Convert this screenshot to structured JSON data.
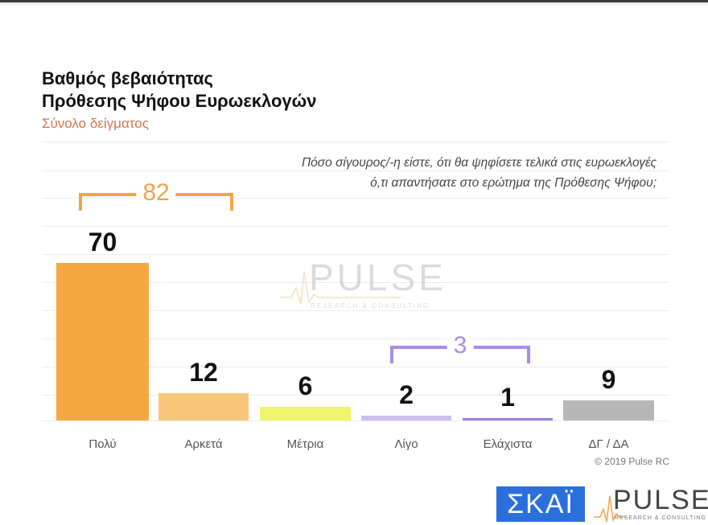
{
  "header": {
    "title_line1": "Βαθμός βεβαιότητας",
    "title_line2": "Πρόθεσης Ψήφου Ευρωεκλογών",
    "subtitle": "Σύνολο δείγματος"
  },
  "question": {
    "line1": "Πόσο σίγουρος/-η είστε, ότι θα ψηφίσετε τελικά στις ευρωεκλογές",
    "line2": "ό,τι απαντήσατε στο ερώτημα της Πρόθεσης Ψήφου;"
  },
  "brackets": {
    "high": {
      "label": "82",
      "color": "#f0a54a"
    },
    "low": {
      "label": "3",
      "color": "#a98be8"
    }
  },
  "watermark": {
    "text": "PULSE",
    "subtext": "RESEARCH & CONSULTING"
  },
  "footer": {
    "copyright": "© 2019 Pulse RC",
    "skai_logo": "ΣΚΑΪ",
    "pulse_logo": "PULSE",
    "pulse_sub": "RESEARCH & CONSULTING"
  },
  "chart_data": {
    "type": "bar",
    "title": "Βαθμός βεβαιότητας Πρόθεσης Ψήφου Ευρωεκλογών",
    "subtitle": "Σύνολο δείγματος",
    "categories": [
      "Πολύ",
      "Αρκετά",
      "Μέτρια",
      "Λίγο",
      "Ελάχιστα",
      "ΔΓ / ΔΑ"
    ],
    "values": [
      70,
      12,
      6,
      2,
      1,
      9
    ],
    "colors": [
      "#f5a742",
      "#f8c77a",
      "#eef56a",
      "#cdbdf0",
      "#9b7fe0",
      "#b7b7b7"
    ],
    "labels": [
      "70",
      "12",
      "6",
      "2",
      "1",
      "9"
    ],
    "annotations": [
      {
        "text": "82",
        "spans": [
          "Πολύ",
          "Αρκετά"
        ]
      },
      {
        "text": "3",
        "spans": [
          "Λίγο",
          "Ελάχιστα"
        ]
      }
    ],
    "xlabel": "",
    "ylabel": "",
    "ylim": [
      0,
      100
    ],
    "grid": true,
    "legend": "none"
  }
}
